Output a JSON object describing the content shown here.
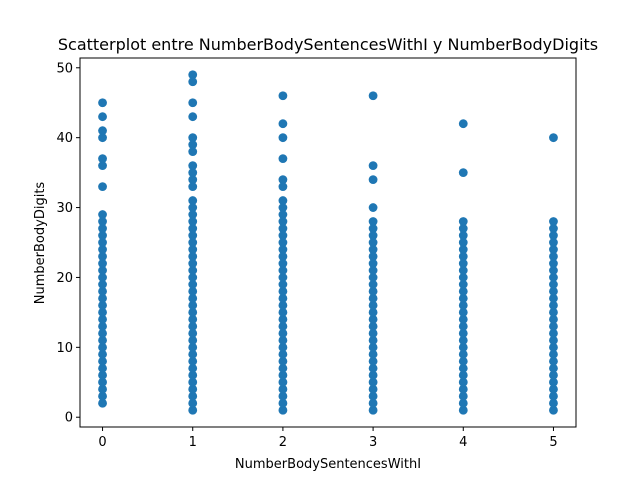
{
  "chart_data": {
    "type": "scatter",
    "title": "Scatterplot entre NumberBodySentencesWithI y NumberBodyDigits",
    "xlabel": "NumberBodySentencesWithI",
    "ylabel": "NumberBodyDigits",
    "xlim": [
      -0.25,
      5.25
    ],
    "ylim": [
      -1.4,
      51.4
    ],
    "x_ticks": [
      0,
      1,
      2,
      3,
      4,
      5
    ],
    "y_ticks": [
      0,
      10,
      20,
      30,
      40,
      50
    ],
    "grid": false,
    "legend": "none",
    "color": "#1f77b4",
    "series": [
      {
        "points": [
          {
            "x": 0,
            "y": 2
          },
          {
            "x": 0,
            "y": 3
          },
          {
            "x": 0,
            "y": 4
          },
          {
            "x": 0,
            "y": 5
          },
          {
            "x": 0,
            "y": 6
          },
          {
            "x": 0,
            "y": 7
          },
          {
            "x": 0,
            "y": 8
          },
          {
            "x": 0,
            "y": 9
          },
          {
            "x": 0,
            "y": 10
          },
          {
            "x": 0,
            "y": 11
          },
          {
            "x": 0,
            "y": 12
          },
          {
            "x": 0,
            "y": 13
          },
          {
            "x": 0,
            "y": 14
          },
          {
            "x": 0,
            "y": 15
          },
          {
            "x": 0,
            "y": 16
          },
          {
            "x": 0,
            "y": 17
          },
          {
            "x": 0,
            "y": 18
          },
          {
            "x": 0,
            "y": 19
          },
          {
            "x": 0,
            "y": 20
          },
          {
            "x": 0,
            "y": 21
          },
          {
            "x": 0,
            "y": 22
          },
          {
            "x": 0,
            "y": 23
          },
          {
            "x": 0,
            "y": 24
          },
          {
            "x": 0,
            "y": 25
          },
          {
            "x": 0,
            "y": 26
          },
          {
            "x": 0,
            "y": 27
          },
          {
            "x": 0,
            "y": 28
          },
          {
            "x": 0,
            "y": 29
          },
          {
            "x": 0,
            "y": 33
          },
          {
            "x": 0,
            "y": 36
          },
          {
            "x": 0,
            "y": 37
          },
          {
            "x": 0,
            "y": 40
          },
          {
            "x": 0,
            "y": 41
          },
          {
            "x": 0,
            "y": 43
          },
          {
            "x": 0,
            "y": 45
          },
          {
            "x": 1,
            "y": 1
          },
          {
            "x": 1,
            "y": 2
          },
          {
            "x": 1,
            "y": 3
          },
          {
            "x": 1,
            "y": 4
          },
          {
            "x": 1,
            "y": 5
          },
          {
            "x": 1,
            "y": 6
          },
          {
            "x": 1,
            "y": 7
          },
          {
            "x": 1,
            "y": 8
          },
          {
            "x": 1,
            "y": 9
          },
          {
            "x": 1,
            "y": 10
          },
          {
            "x": 1,
            "y": 11
          },
          {
            "x": 1,
            "y": 12
          },
          {
            "x": 1,
            "y": 13
          },
          {
            "x": 1,
            "y": 14
          },
          {
            "x": 1,
            "y": 15
          },
          {
            "x": 1,
            "y": 16
          },
          {
            "x": 1,
            "y": 17
          },
          {
            "x": 1,
            "y": 18
          },
          {
            "x": 1,
            "y": 19
          },
          {
            "x": 1,
            "y": 20
          },
          {
            "x": 1,
            "y": 21
          },
          {
            "x": 1,
            "y": 22
          },
          {
            "x": 1,
            "y": 23
          },
          {
            "x": 1,
            "y": 24
          },
          {
            "x": 1,
            "y": 25
          },
          {
            "x": 1,
            "y": 26
          },
          {
            "x": 1,
            "y": 27
          },
          {
            "x": 1,
            "y": 28
          },
          {
            "x": 1,
            "y": 29
          },
          {
            "x": 1,
            "y": 30
          },
          {
            "x": 1,
            "y": 31
          },
          {
            "x": 1,
            "y": 33
          },
          {
            "x": 1,
            "y": 34
          },
          {
            "x": 1,
            "y": 35
          },
          {
            "x": 1,
            "y": 36
          },
          {
            "x": 1,
            "y": 38
          },
          {
            "x": 1,
            "y": 39
          },
          {
            "x": 1,
            "y": 40
          },
          {
            "x": 1,
            "y": 43
          },
          {
            "x": 1,
            "y": 45
          },
          {
            "x": 1,
            "y": 48
          },
          {
            "x": 1,
            "y": 49
          },
          {
            "x": 2,
            "y": 1
          },
          {
            "x": 2,
            "y": 2
          },
          {
            "x": 2,
            "y": 3
          },
          {
            "x": 2,
            "y": 4
          },
          {
            "x": 2,
            "y": 5
          },
          {
            "x": 2,
            "y": 6
          },
          {
            "x": 2,
            "y": 7
          },
          {
            "x": 2,
            "y": 8
          },
          {
            "x": 2,
            "y": 9
          },
          {
            "x": 2,
            "y": 10
          },
          {
            "x": 2,
            "y": 11
          },
          {
            "x": 2,
            "y": 12
          },
          {
            "x": 2,
            "y": 13
          },
          {
            "x": 2,
            "y": 14
          },
          {
            "x": 2,
            "y": 15
          },
          {
            "x": 2,
            "y": 16
          },
          {
            "x": 2,
            "y": 17
          },
          {
            "x": 2,
            "y": 18
          },
          {
            "x": 2,
            "y": 19
          },
          {
            "x": 2,
            "y": 20
          },
          {
            "x": 2,
            "y": 21
          },
          {
            "x": 2,
            "y": 22
          },
          {
            "x": 2,
            "y": 23
          },
          {
            "x": 2,
            "y": 24
          },
          {
            "x": 2,
            "y": 25
          },
          {
            "x": 2,
            "y": 26
          },
          {
            "x": 2,
            "y": 27
          },
          {
            "x": 2,
            "y": 28
          },
          {
            "x": 2,
            "y": 29
          },
          {
            "x": 2,
            "y": 30
          },
          {
            "x": 2,
            "y": 31
          },
          {
            "x": 2,
            "y": 33
          },
          {
            "x": 2,
            "y": 34
          },
          {
            "x": 2,
            "y": 37
          },
          {
            "x": 2,
            "y": 40
          },
          {
            "x": 2,
            "y": 42
          },
          {
            "x": 2,
            "y": 46
          },
          {
            "x": 3,
            "y": 1
          },
          {
            "x": 3,
            "y": 2
          },
          {
            "x": 3,
            "y": 3
          },
          {
            "x": 3,
            "y": 4
          },
          {
            "x": 3,
            "y": 5
          },
          {
            "x": 3,
            "y": 6
          },
          {
            "x": 3,
            "y": 7
          },
          {
            "x": 3,
            "y": 8
          },
          {
            "x": 3,
            "y": 9
          },
          {
            "x": 3,
            "y": 10
          },
          {
            "x": 3,
            "y": 11
          },
          {
            "x": 3,
            "y": 12
          },
          {
            "x": 3,
            "y": 13
          },
          {
            "x": 3,
            "y": 14
          },
          {
            "x": 3,
            "y": 15
          },
          {
            "x": 3,
            "y": 16
          },
          {
            "x": 3,
            "y": 17
          },
          {
            "x": 3,
            "y": 18
          },
          {
            "x": 3,
            "y": 19
          },
          {
            "x": 3,
            "y": 20
          },
          {
            "x": 3,
            "y": 21
          },
          {
            "x": 3,
            "y": 22
          },
          {
            "x": 3,
            "y": 23
          },
          {
            "x": 3,
            "y": 24
          },
          {
            "x": 3,
            "y": 25
          },
          {
            "x": 3,
            "y": 26
          },
          {
            "x": 3,
            "y": 27
          },
          {
            "x": 3,
            "y": 28
          },
          {
            "x": 3,
            "y": 30
          },
          {
            "x": 3,
            "y": 34
          },
          {
            "x": 3,
            "y": 36
          },
          {
            "x": 3,
            "y": 46
          },
          {
            "x": 4,
            "y": 1
          },
          {
            "x": 4,
            "y": 2
          },
          {
            "x": 4,
            "y": 3
          },
          {
            "x": 4,
            "y": 4
          },
          {
            "x": 4,
            "y": 5
          },
          {
            "x": 4,
            "y": 6
          },
          {
            "x": 4,
            "y": 7
          },
          {
            "x": 4,
            "y": 8
          },
          {
            "x": 4,
            "y": 9
          },
          {
            "x": 4,
            "y": 10
          },
          {
            "x": 4,
            "y": 11
          },
          {
            "x": 4,
            "y": 12
          },
          {
            "x": 4,
            "y": 13
          },
          {
            "x": 4,
            "y": 14
          },
          {
            "x": 4,
            "y": 15
          },
          {
            "x": 4,
            "y": 16
          },
          {
            "x": 4,
            "y": 17
          },
          {
            "x": 4,
            "y": 18
          },
          {
            "x": 4,
            "y": 19
          },
          {
            "x": 4,
            "y": 20
          },
          {
            "x": 4,
            "y": 21
          },
          {
            "x": 4,
            "y": 22
          },
          {
            "x": 4,
            "y": 23
          },
          {
            "x": 4,
            "y": 24
          },
          {
            "x": 4,
            "y": 25
          },
          {
            "x": 4,
            "y": 26
          },
          {
            "x": 4,
            "y": 27
          },
          {
            "x": 4,
            "y": 28
          },
          {
            "x": 4,
            "y": 35
          },
          {
            "x": 4,
            "y": 42
          },
          {
            "x": 5,
            "y": 1
          },
          {
            "x": 5,
            "y": 2
          },
          {
            "x": 5,
            "y": 3
          },
          {
            "x": 5,
            "y": 4
          },
          {
            "x": 5,
            "y": 5
          },
          {
            "x": 5,
            "y": 6
          },
          {
            "x": 5,
            "y": 7
          },
          {
            "x": 5,
            "y": 8
          },
          {
            "x": 5,
            "y": 9
          },
          {
            "x": 5,
            "y": 10
          },
          {
            "x": 5,
            "y": 11
          },
          {
            "x": 5,
            "y": 12
          },
          {
            "x": 5,
            "y": 13
          },
          {
            "x": 5,
            "y": 14
          },
          {
            "x": 5,
            "y": 15
          },
          {
            "x": 5,
            "y": 16
          },
          {
            "x": 5,
            "y": 17
          },
          {
            "x": 5,
            "y": 18
          },
          {
            "x": 5,
            "y": 19
          },
          {
            "x": 5,
            "y": 20
          },
          {
            "x": 5,
            "y": 21
          },
          {
            "x": 5,
            "y": 22
          },
          {
            "x": 5,
            "y": 23
          },
          {
            "x": 5,
            "y": 24
          },
          {
            "x": 5,
            "y": 25
          },
          {
            "x": 5,
            "y": 26
          },
          {
            "x": 5,
            "y": 27
          },
          {
            "x": 5,
            "y": 28
          },
          {
            "x": 5,
            "y": 40
          }
        ]
      }
    ]
  }
}
